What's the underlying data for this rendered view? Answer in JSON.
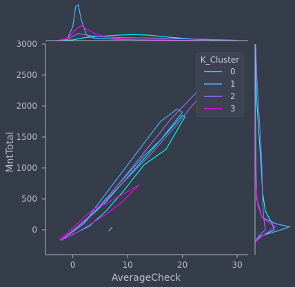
{
  "chart_data": {
    "type": "line",
    "subtype": "jointplot-kde",
    "xlabel": "AverageCheck",
    "ylabel": "MntTotal",
    "xlim": [
      -5,
      32
    ],
    "ylim": [
      -400,
      3000
    ],
    "xticks": [
      "0",
      "10",
      "20",
      "30"
    ],
    "yticks": [
      "0",
      "500",
      "1000",
      "1500",
      "2000",
      "2500",
      "3000"
    ],
    "grid": false,
    "legend": {
      "title": "K_Cluster",
      "placement": "top-right"
    },
    "series": [
      {
        "name": "0",
        "color": "#00ffff",
        "contour": [
          [
            -1.5,
            -120
          ],
          [
            3,
            200
          ],
          [
            6,
            450
          ],
          [
            10,
            850
          ],
          [
            14,
            1250
          ],
          [
            18,
            1650
          ],
          [
            20,
            1850
          ],
          [
            20.5,
            1830
          ],
          [
            17,
            1300
          ],
          [
            13,
            1050
          ],
          [
            9,
            600
          ],
          [
            6,
            300
          ],
          [
            3,
            60
          ],
          [
            -1.5,
            -140
          ]
        ],
        "marginal_x": [
          [
            -3,
            0
          ],
          [
            0,
            0.02
          ],
          [
            2,
            0.08
          ],
          [
            5,
            0.12
          ],
          [
            8,
            0.15
          ],
          [
            11,
            0.17
          ],
          [
            14,
            0.15
          ],
          [
            18,
            0.09
          ],
          [
            22,
            0.04
          ],
          [
            26,
            0.015
          ],
          [
            30,
            0.004
          ]
        ],
        "marginal_y": [
          [
            -200,
            0
          ],
          [
            -100,
            0.2
          ],
          [
            0,
            0.55
          ],
          [
            100,
            0.5
          ],
          [
            300,
            0.3
          ],
          [
            600,
            0.22
          ],
          [
            1000,
            0.18
          ],
          [
            1500,
            0.12
          ],
          [
            2000,
            0.06
          ],
          [
            2500,
            0.02
          ],
          [
            3000,
            0.004
          ]
        ]
      },
      {
        "name": "1",
        "color": "#4fb6ff",
        "contour": [
          [
            -2,
            -150
          ],
          [
            2,
            100
          ],
          [
            4,
            350
          ],
          [
            7,
            700
          ],
          [
            10,
            1050
          ],
          [
            13,
            1400
          ],
          [
            16,
            1750
          ],
          [
            19,
            1950
          ],
          [
            20,
            1900
          ],
          [
            16,
            1450
          ],
          [
            13,
            1200
          ],
          [
            9,
            800
          ],
          [
            5,
            400
          ],
          [
            2,
            100
          ],
          [
            -2,
            -160
          ]
        ],
        "marginal_x": [
          [
            -3,
            0
          ],
          [
            -1,
            0.05
          ],
          [
            0,
            0.4
          ],
          [
            0.5,
            0.95
          ],
          [
            1,
            1.0
          ],
          [
            1.5,
            0.6
          ],
          [
            2.5,
            0.15
          ],
          [
            4,
            0.06
          ],
          [
            8,
            0.04
          ],
          [
            14,
            0.02
          ],
          [
            20,
            0.008
          ],
          [
            30,
            0.001
          ]
        ],
        "marginal_y": [
          [
            -200,
            0
          ],
          [
            -100,
            0.15
          ],
          [
            0,
            0.75
          ],
          [
            50,
            1.0
          ],
          [
            100,
            0.6
          ],
          [
            200,
            0.2
          ],
          [
            500,
            0.05
          ],
          [
            1000,
            0.03
          ],
          [
            2000,
            0.01
          ],
          [
            3000,
            0.002
          ]
        ]
      },
      {
        "name": "2",
        "color": "#9b6cff",
        "contour": [
          [
            -2,
            -150
          ],
          [
            3,
            200
          ],
          [
            8,
            700
          ],
          [
            13,
            1250
          ],
          [
            18,
            1800
          ],
          [
            24,
            2350
          ],
          [
            24.5,
            2300
          ],
          [
            19,
            1700
          ],
          [
            14,
            1200
          ],
          [
            9,
            750
          ],
          [
            4,
            300
          ],
          [
            -2,
            -170
          ]
        ],
        "marginal_x": [
          [
            -3,
            0
          ],
          [
            -1,
            0.04
          ],
          [
            1,
            0.2
          ],
          [
            3,
            0.14
          ],
          [
            6,
            0.1
          ],
          [
            10,
            0.08
          ],
          [
            15,
            0.07
          ],
          [
            20,
            0.05
          ],
          [
            25,
            0.03
          ],
          [
            30,
            0.01
          ]
        ],
        "marginal_y": [
          [
            -200,
            0
          ],
          [
            -100,
            0.1
          ],
          [
            0,
            0.3
          ],
          [
            200,
            0.25
          ],
          [
            500,
            0.22
          ],
          [
            1000,
            0.2
          ],
          [
            1500,
            0.16
          ],
          [
            2000,
            0.1
          ],
          [
            2500,
            0.05
          ],
          [
            3000,
            0.02
          ]
        ]
      },
      {
        "name": "3",
        "color": "#ff00ff",
        "contour": [
          [
            -2.5,
            -160
          ],
          [
            0,
            30
          ],
          [
            2,
            200
          ],
          [
            4,
            350
          ],
          [
            6,
            420
          ],
          [
            8,
            520
          ],
          [
            10,
            620
          ],
          [
            12,
            720
          ],
          [
            9,
            450
          ],
          [
            6,
            250
          ],
          [
            3,
            80
          ],
          [
            0,
            -80
          ],
          [
            -2.5,
            -170
          ]
        ],
        "marginal_x": [
          [
            -3,
            0
          ],
          [
            -1,
            0.06
          ],
          [
            0.5,
            0.3
          ],
          [
            1.5,
            0.42
          ],
          [
            2.5,
            0.32
          ],
          [
            4,
            0.2
          ],
          [
            6,
            0.1
          ],
          [
            9,
            0.05
          ],
          [
            13,
            0.02
          ],
          [
            18,
            0.005
          ],
          [
            25,
            0.001
          ]
        ],
        "marginal_y": [
          [
            -200,
            0
          ],
          [
            -100,
            0.2
          ],
          [
            0,
            0.45
          ],
          [
            50,
            0.6
          ],
          [
            100,
            0.45
          ],
          [
            200,
            0.2
          ],
          [
            400,
            0.08
          ],
          [
            700,
            0.03
          ],
          [
            1200,
            0.01
          ],
          [
            2000,
            0.002
          ]
        ]
      }
    ],
    "extra_contour": {
      "series": "1",
      "points": [
        [
          6.5,
          -20
        ],
        [
          7.2,
          40
        ],
        [
          7.0,
          30
        ],
        [
          6.6,
          -10
        ]
      ]
    }
  }
}
